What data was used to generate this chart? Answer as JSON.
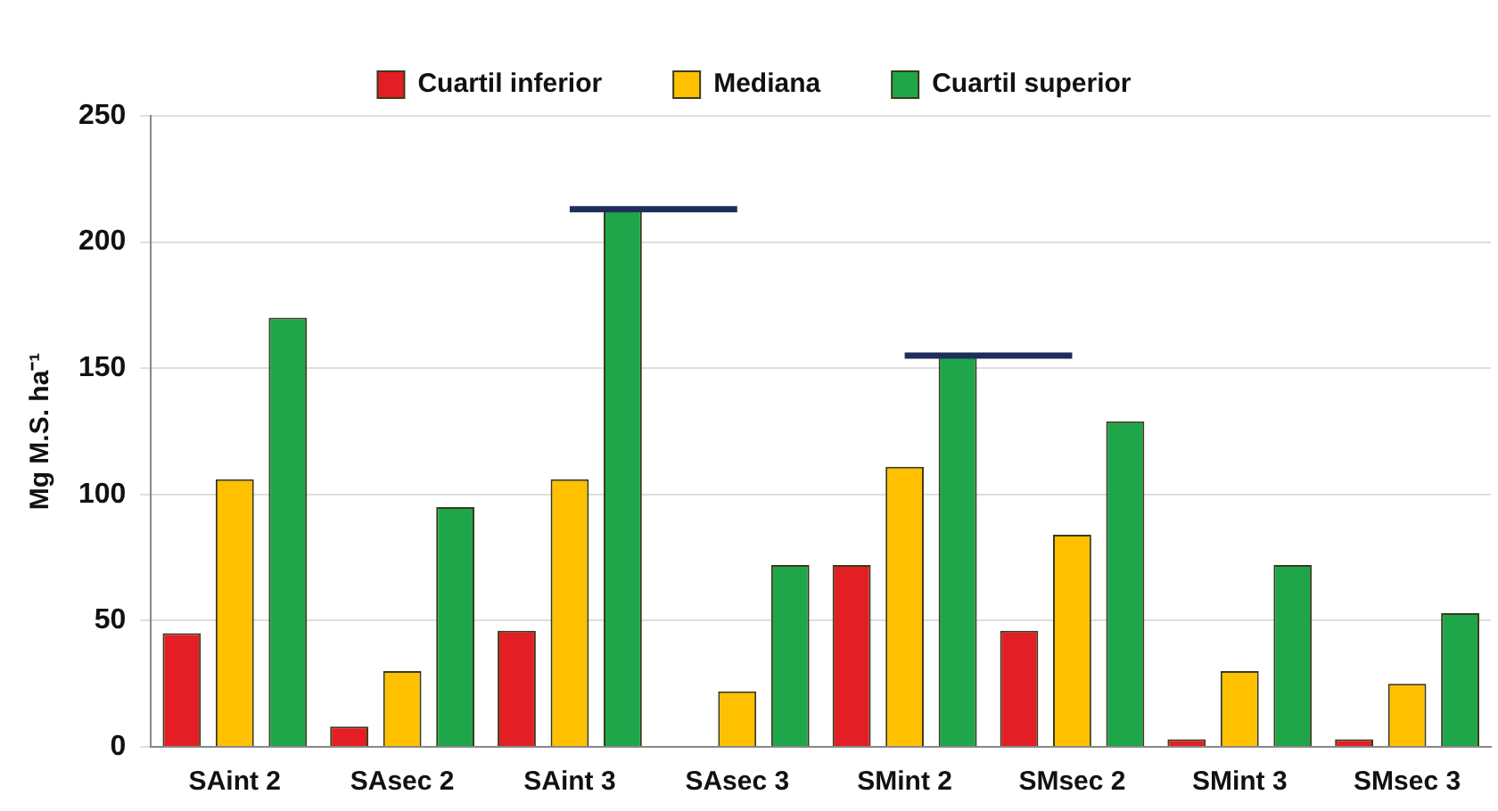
{
  "chart_data": {
    "type": "bar",
    "ylabel": "Mg M.S. ha⁻¹",
    "categories": [
      "SAint 2",
      "SAsec 2",
      "SAint 3",
      "SAsec 3",
      "SMint 2",
      "SMsec 2",
      "SMint 3",
      "SMsec 3"
    ],
    "series": [
      {
        "name": "Cuartil inferior",
        "color": "#e31e24",
        "values": [
          45,
          8,
          46,
          null,
          72,
          46,
          3,
          3
        ]
      },
      {
        "name": "Mediana",
        "color": "#ffc000",
        "values": [
          106,
          30,
          106,
          22,
          111,
          84,
          30,
          25
        ]
      },
      {
        "name": "Cuartil superior",
        "color": "#1fa64b",
        "values": [
          170,
          95,
          213,
          72,
          155,
          129,
          72,
          53
        ]
      },
      {
        "type": "line",
        "color": "#1f2d5a",
        "x": [
          "SAint 3",
          "SAsec 3"
        ],
        "values": [
          213,
          213
        ]
      },
      {
        "type": "line",
        "color": "#1f2d5a",
        "x": [
          "SMint 2",
          "SMsec 2"
        ],
        "values": [
          155,
          155
        ]
      }
    ],
    "ylim": [
      0,
      250
    ],
    "yticks": [
      0,
      50,
      100,
      150,
      200,
      250
    ],
    "grid": "y",
    "legend": "top",
    "marker": "none"
  }
}
